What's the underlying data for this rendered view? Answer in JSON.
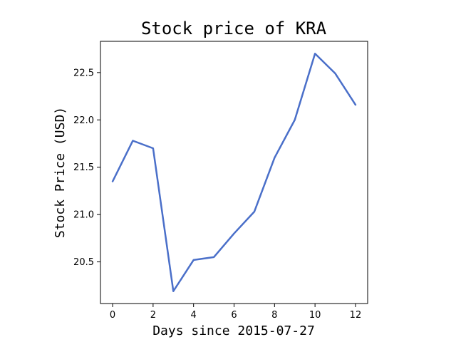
{
  "chart_data": {
    "type": "line",
    "title": "Stock price of KRA",
    "xlabel": "Days since 2015-07-27",
    "ylabel": "Stock Price (USD)",
    "x": [
      0,
      1,
      2,
      3,
      4,
      5,
      6,
      7,
      8,
      9,
      10,
      11,
      12
    ],
    "series": [
      {
        "values": [
          21.35,
          21.78,
          21.7,
          20.19,
          20.52,
          20.55,
          20.8,
          21.03,
          21.6,
          22.0,
          22.7,
          22.49,
          22.16
        ],
        "color": "#4a6fc9"
      }
    ],
    "xlim": [
      -0.6,
      12.6
    ],
    "ylim": [
      20.06,
      22.83
    ],
    "xticks": [
      0,
      2,
      4,
      6,
      8,
      10,
      12
    ],
    "xtick_labels": [
      "0",
      "2",
      "4",
      "6",
      "8",
      "10",
      "12"
    ],
    "yticks": [
      20.5,
      21.0,
      21.5,
      22.0,
      22.5
    ],
    "ytick_labels": [
      "20.5",
      "21.0",
      "21.5",
      "22.0",
      "22.5"
    ],
    "grid": false,
    "legend": "none"
  }
}
